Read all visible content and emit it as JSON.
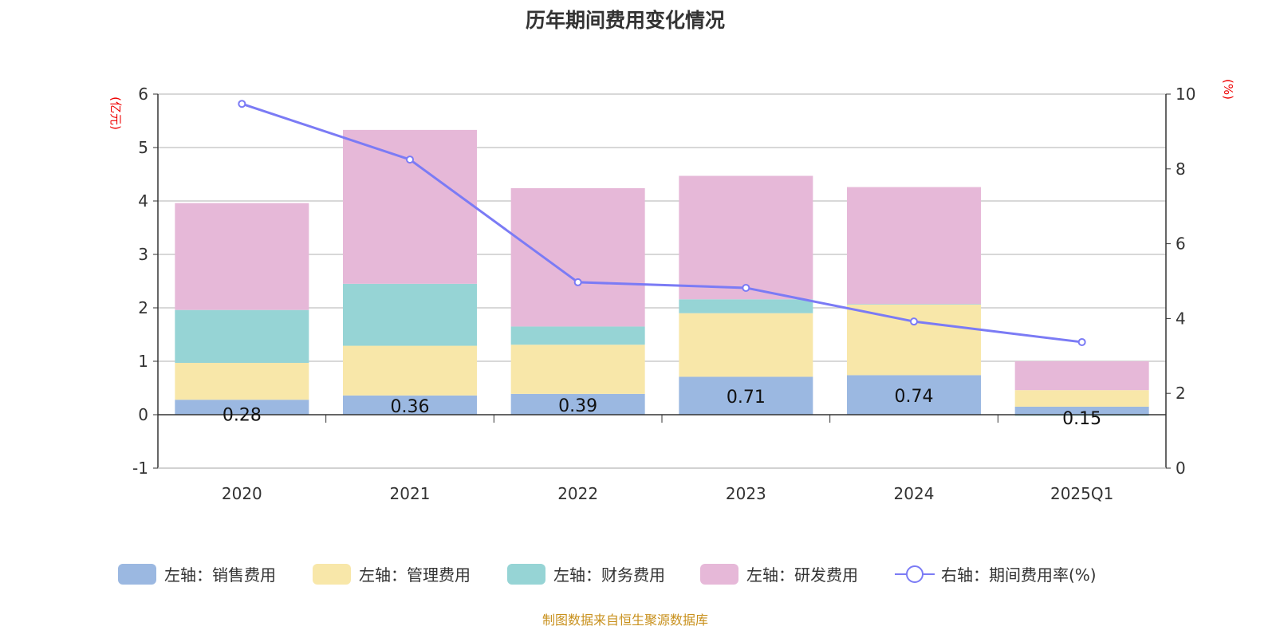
{
  "chart_data": {
    "type": "bar",
    "stacked": true,
    "title": "历年期间费用变化情况",
    "categories": [
      "2020",
      "2021",
      "2022",
      "2023",
      "2024",
      "2025Q1"
    ],
    "left_axis": {
      "unit": "(亿元)",
      "ylim": [
        -1,
        6
      ],
      "ticks": [
        "-1",
        "0",
        "1",
        "2",
        "3",
        "4",
        "5",
        "6"
      ]
    },
    "right_axis": {
      "unit": "(%)",
      "ylim": [
        0,
        10
      ],
      "ticks": [
        "0",
        "2",
        "4",
        "6",
        "8",
        "10"
      ]
    },
    "grid": true,
    "legend_position": "bottom",
    "series": [
      {
        "name": "左轴：销售费用",
        "axis": "left",
        "color": "#9bb8e1",
        "values": [
          0.28,
          0.36,
          0.39,
          0.71,
          0.74,
          0.15
        ],
        "labels": [
          "0.28",
          "0.36",
          "0.39",
          "0.71",
          "0.74",
          "0.15"
        ]
      },
      {
        "name": "左轴：管理费用",
        "axis": "left",
        "color": "#f8e7a9",
        "values": [
          0.69,
          0.93,
          0.92,
          1.19,
          1.32,
          0.31
        ]
      },
      {
        "name": "左轴：财务费用",
        "axis": "left",
        "color": "#96d4d5",
        "values": [
          0.99,
          1.16,
          0.34,
          0.26,
          0.01,
          -0.02
        ]
      },
      {
        "name": "左轴：研发费用",
        "axis": "left",
        "color": "#e6b8d8",
        "values": [
          2.0,
          2.88,
          2.59,
          2.31,
          2.19,
          0.54
        ]
      },
      {
        "name": "右轴：期间费用率(%)",
        "axis": "right",
        "type": "line",
        "color": "#7b7bf5",
        "values": [
          9.74,
          8.25,
          4.97,
          4.82,
          3.92,
          3.37
        ]
      }
    ]
  },
  "source": "制图数据来自恒生聚源数据库"
}
